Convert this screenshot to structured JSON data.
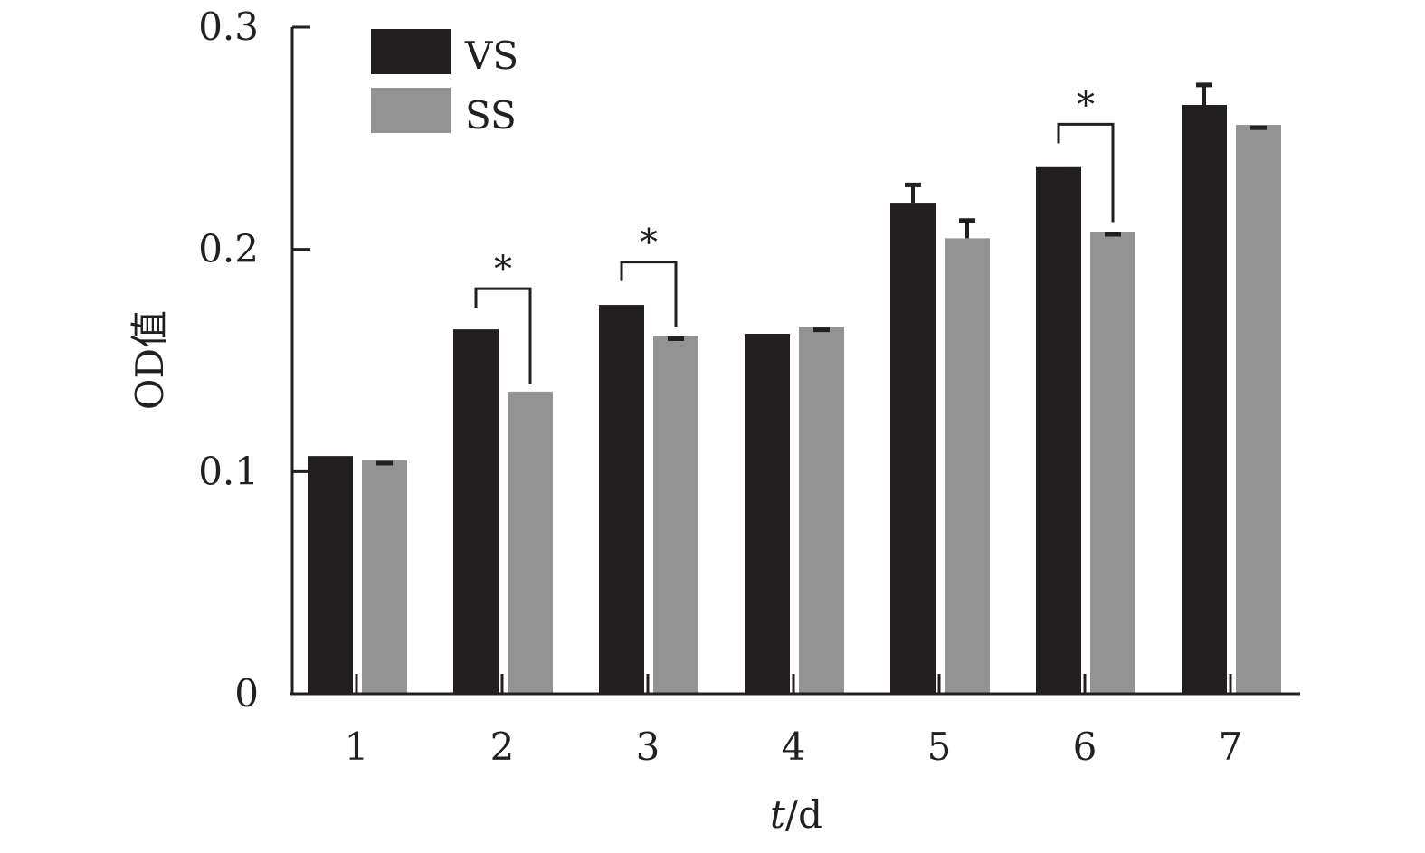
{
  "chart_data": {
    "type": "bar",
    "xlabel_italic": "t",
    "xlabel_rest": "/d",
    "ylabel": "OD值",
    "categories": [
      "1",
      "2",
      "3",
      "4",
      "5",
      "6",
      "7"
    ],
    "ylim": [
      0,
      0.3
    ],
    "yticks": [
      {
        "value": 0,
        "label": "0"
      },
      {
        "value": 0.1,
        "label": "0.1"
      },
      {
        "value": 0.2,
        "label": "0.2"
      },
      {
        "value": 0.3,
        "label": "0.3"
      }
    ],
    "series": [
      {
        "name": "VS",
        "color": "#231f20",
        "values": [
          0.107,
          0.164,
          0.175,
          0.162,
          0.221,
          0.237,
          0.265
        ],
        "errors": [
          0.0,
          0.0,
          0.001,
          0.0,
          0.008,
          0.001,
          0.009
        ]
      },
      {
        "name": "SS",
        "color": "#939393",
        "values": [
          0.105,
          0.136,
          0.161,
          0.165,
          0.205,
          0.208,
          0.256
        ],
        "errors": [
          0.001,
          0.0,
          0.001,
          0.001,
          0.008,
          0.001,
          0.001
        ]
      }
    ],
    "significance": [
      {
        "category": "2",
        "label": "*"
      },
      {
        "category": "3",
        "label": "*"
      },
      {
        "category": "6",
        "label": "*"
      }
    ],
    "legend_position": "top-left",
    "grid": false
  }
}
